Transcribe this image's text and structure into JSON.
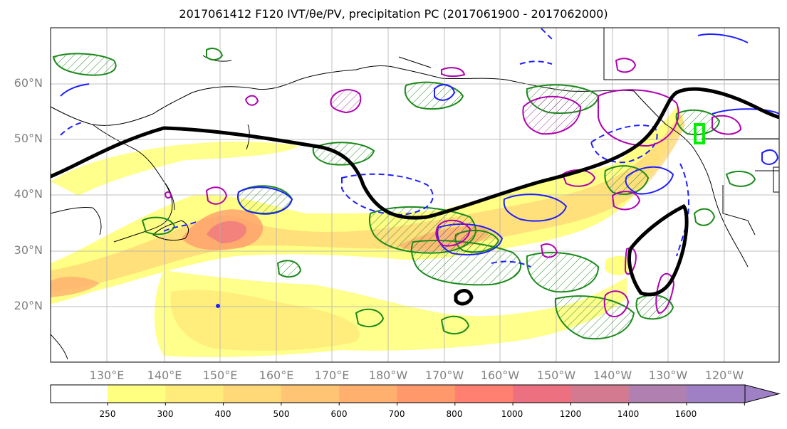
{
  "title": "2017061412 F120 IVT/θe/PV, precipitation PC (2017061900 - 2017062000)",
  "map": {
    "lat_labels": [
      "60°N",
      "50°N",
      "40°N",
      "30°N",
      "20°N"
    ],
    "lon_labels": [
      "130°E",
      "140°E",
      "150°E",
      "160°E",
      "170°E",
      "180°W",
      "170°W",
      "160°W",
      "150°W",
      "140°W",
      "130°W",
      "120°W"
    ],
    "lat_values": [
      60,
      50,
      40,
      30,
      20
    ],
    "lon_values": [
      130,
      140,
      150,
      160,
      170,
      180,
      -170,
      -160,
      -150,
      -140,
      -130,
      -120
    ]
  },
  "colorbar": {
    "ticks": [
      "250",
      "300",
      "400",
      "500",
      "600",
      "700",
      "800",
      "1000",
      "1200",
      "1400",
      "1600"
    ],
    "colors": [
      "#ffff80",
      "#ffec7a",
      "#ffd877",
      "#ffc474",
      "#ffb06f",
      "#ff986b",
      "#ff8070",
      "#ec7080",
      "#d47a90",
      "#b080b0",
      "#a080c4"
    ]
  }
}
